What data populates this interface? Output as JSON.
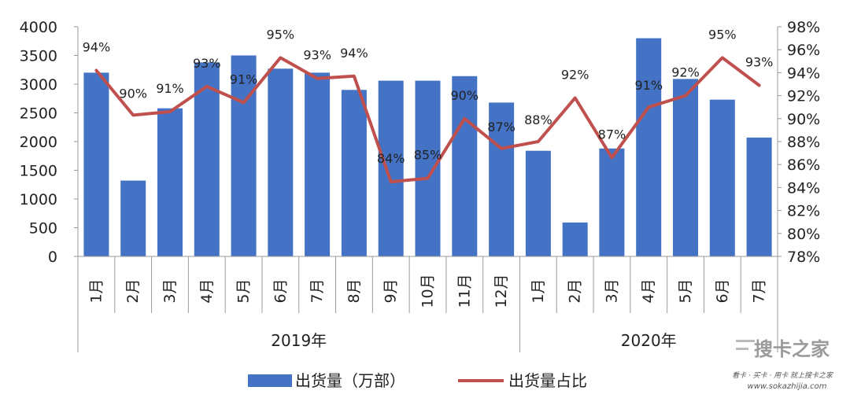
{
  "chart_data": {
    "type": "bar",
    "categories": [
      "1月",
      "2月",
      "3月",
      "4月",
      "5月",
      "6月",
      "7月",
      "8月",
      "9月",
      "10月",
      "11月",
      "12月",
      "1月",
      "2月",
      "3月",
      "4月",
      "5月",
      "6月",
      "7月"
    ],
    "groups": [
      {
        "label": "2019年",
        "count": 12
      },
      {
        "label": "2020年",
        "count": 7
      }
    ],
    "series": [
      {
        "name": "出货量（万部）",
        "type": "bar",
        "axis": "left",
        "color": "#4472c4",
        "values": [
          3200,
          1320,
          2580,
          3380,
          3500,
          3270,
          3200,
          2900,
          3060,
          3060,
          3140,
          2680,
          1840,
          590,
          1880,
          3800,
          3090,
          2730,
          2070
        ]
      },
      {
        "name": "出货量占比",
        "type": "line",
        "axis": "right",
        "color": "#c0504d",
        "values": [
          94.2,
          90.3,
          90.6,
          92.8,
          91.4,
          95.3,
          93.5,
          93.7,
          84.5,
          84.8,
          90.0,
          87.4,
          88.0,
          91.8,
          86.6,
          91.0,
          92.0,
          95.3,
          92.9
        ],
        "labels": [
          "94%",
          "90%",
          "91%",
          "93%",
          "91%",
          "95%",
          "93%",
          "94%",
          "84%",
          "85%",
          "90%",
          "87%",
          "88%",
          "92%",
          "87%",
          "91%",
          "92%",
          "95%",
          "93%"
        ]
      }
    ],
    "y_left": {
      "min": 0,
      "max": 4000,
      "ticks": [
        "0",
        "500",
        "1000",
        "1500",
        "2000",
        "2500",
        "3000",
        "3500",
        "4000"
      ]
    },
    "y_right": {
      "min": 78,
      "max": 98,
      "ticks": [
        "78%",
        "80%",
        "82%",
        "84%",
        "86%",
        "88%",
        "90%",
        "92%",
        "94%",
        "96%",
        "98%"
      ]
    },
    "legend_position": "bottom",
    "grid": false
  },
  "watermark": {
    "brand": "搜卡之家",
    "tagline": "看卡 · 买卡 · 用卡 就上搜卡之家",
    "url": "www.sokazhijia.com"
  }
}
